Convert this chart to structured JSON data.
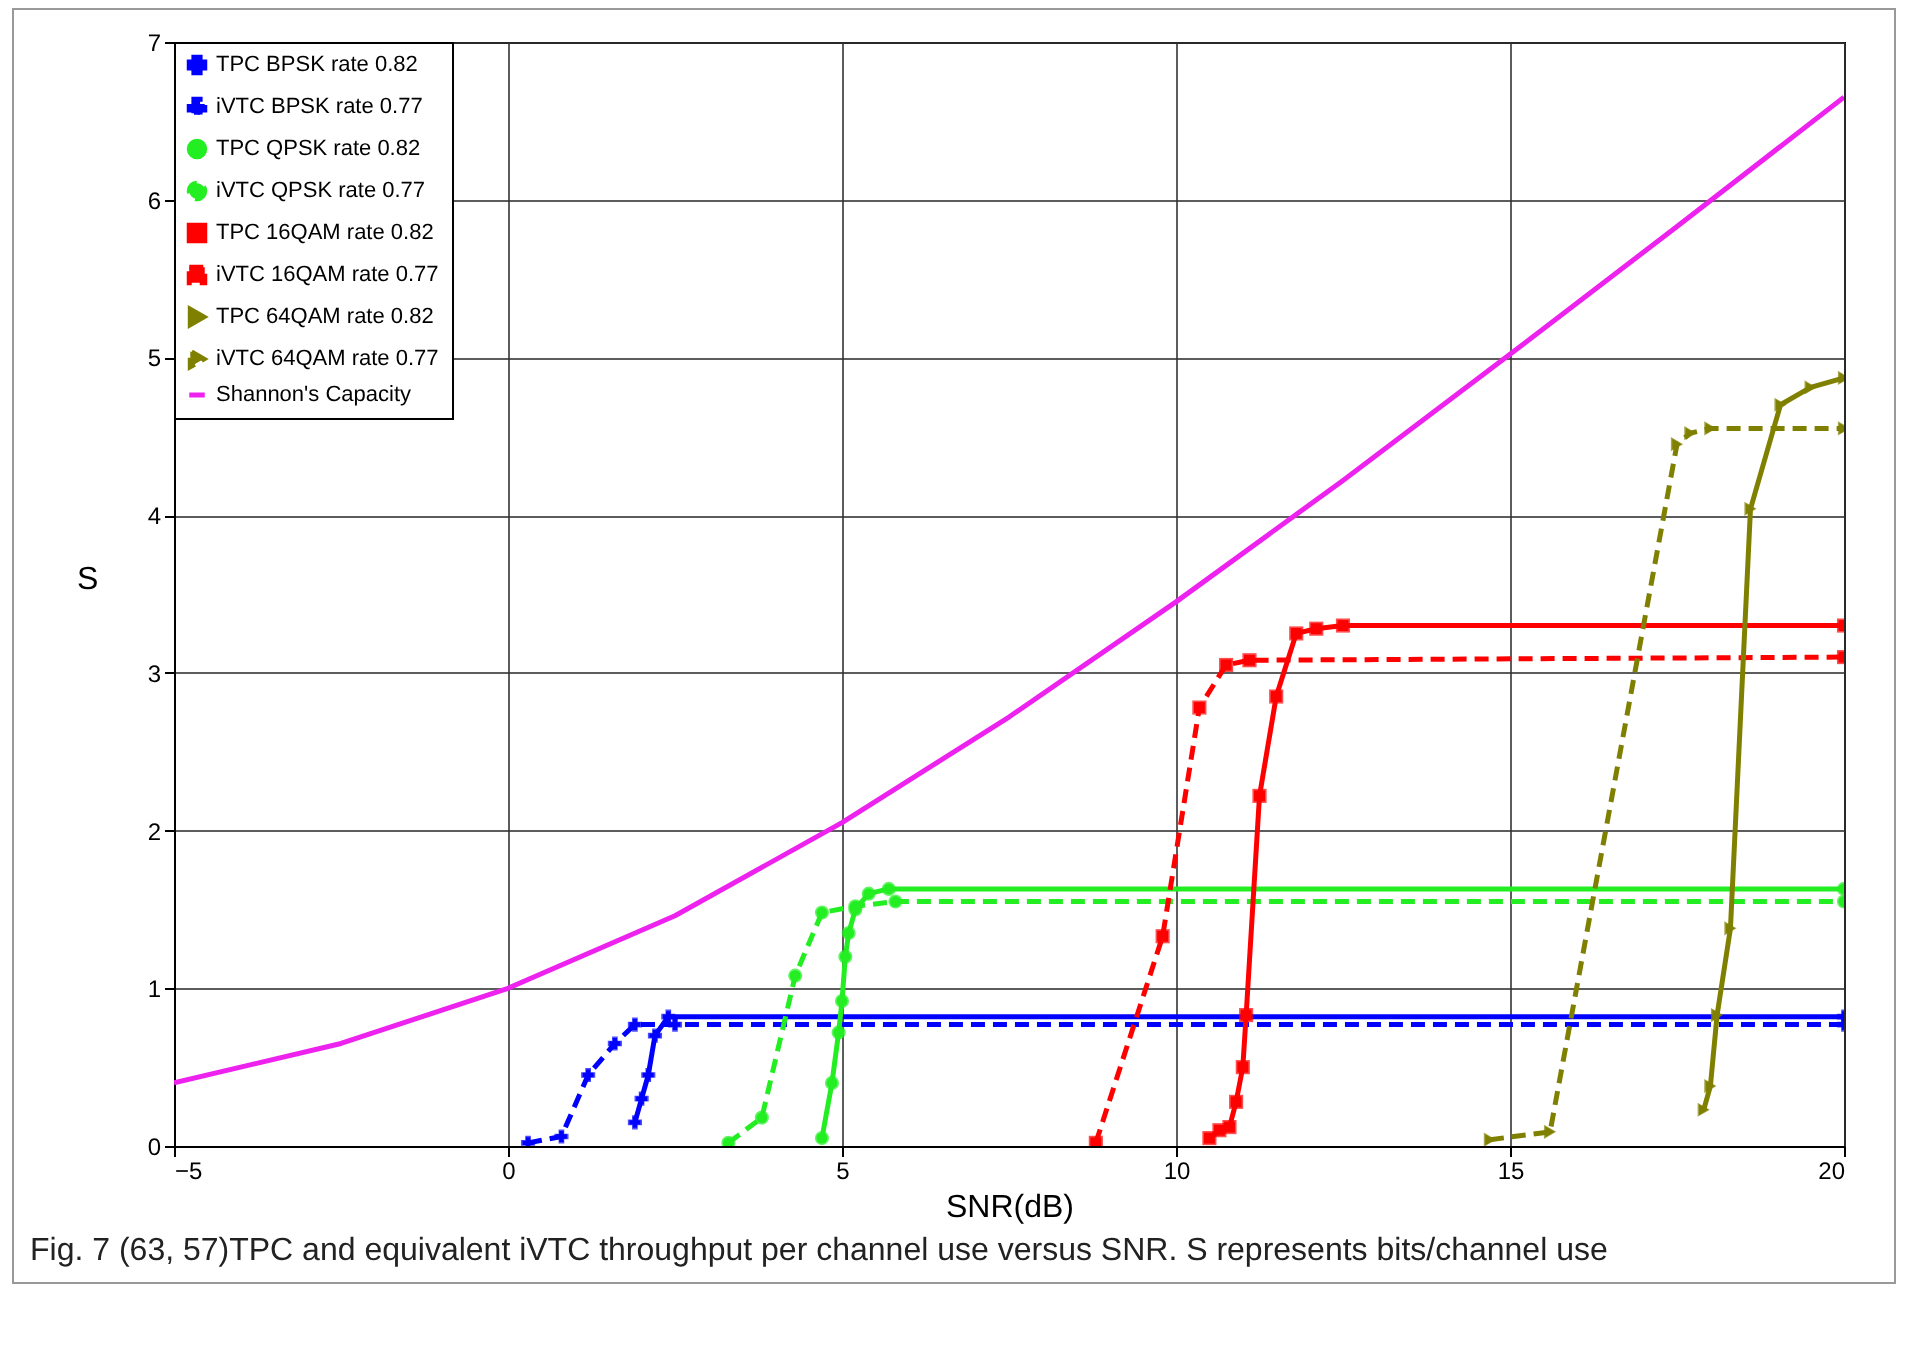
{
  "chart_data": {
    "type": "line",
    "xlabel": "SNR(dB)",
    "ylabel": "S",
    "xlim": [
      -5,
      20
    ],
    "ylim": [
      0,
      7
    ],
    "xticks": [
      -5,
      0,
      5,
      10,
      15,
      20
    ],
    "yticks": [
      0,
      1,
      2,
      3,
      4,
      5,
      6,
      7
    ],
    "grid": true,
    "legend": "top left",
    "annotations": [
      "Fig. 7  (63, 57)TPC and equivalent iVTC throughput per channel use versus SNR. S represents bits/channel use"
    ],
    "series": [
      {
        "name": "TPC BPSK rate 0.82",
        "color": "#0000ff",
        "marker": "cross",
        "line_style": "solid",
        "x": [
          1.9,
          2.0,
          2.1,
          2.2,
          2.4,
          20
        ],
        "values": [
          0.15,
          0.3,
          0.45,
          0.7,
          0.82,
          0.82
        ]
      },
      {
        "name": "iVTC BPSK rate 0.77",
        "color": "#0000ff",
        "marker": "cross",
        "line_style": "dashed",
        "x": [
          0.3,
          0.8,
          1.2,
          1.6,
          1.9,
          2.5,
          20
        ],
        "values": [
          0.02,
          0.06,
          0.45,
          0.65,
          0.77,
          0.77,
          0.77
        ]
      },
      {
        "name": "TPC QPSK rate 0.82",
        "color": "#22ee22",
        "marker": "circle",
        "line_style": "solid",
        "x": [
          4.7,
          4.85,
          4.95,
          5.0,
          5.05,
          5.1,
          5.2,
          5.4,
          5.7,
          20
        ],
        "values": [
          0.05,
          0.4,
          0.72,
          0.92,
          1.2,
          1.35,
          1.5,
          1.6,
          1.63,
          1.63
        ]
      },
      {
        "name": "iVTC QPSK rate 0.77",
        "color": "#22ee22",
        "marker": "circle",
        "line_style": "dashed",
        "x": [
          3.3,
          3.8,
          4.3,
          4.7,
          5.2,
          5.8,
          20
        ],
        "values": [
          0.02,
          0.18,
          1.08,
          1.48,
          1.52,
          1.55,
          1.55
        ]
      },
      {
        "name": "TPC 16QAM rate 0.82",
        "color": "#ff0000",
        "marker": "square",
        "line_style": "solid",
        "x": [
          10.5,
          10.65,
          10.8,
          10.9,
          11.0,
          11.05,
          11.25,
          11.5,
          11.8,
          12.1,
          12.5,
          20
        ],
        "values": [
          0.05,
          0.1,
          0.12,
          0.28,
          0.5,
          0.83,
          2.22,
          2.85,
          3.25,
          3.28,
          3.3,
          3.3
        ]
      },
      {
        "name": "iVTC 16QAM rate 0.77",
        "color": "#ff0000",
        "marker": "square",
        "line_style": "dashed",
        "x": [
          8.8,
          9.8,
          10.35,
          10.75,
          11.1,
          20
        ],
        "values": [
          0.02,
          1.33,
          2.78,
          3.05,
          3.08,
          3.1
        ]
      },
      {
        "name": "TPC 64QAM rate 0.82",
        "color": "#808000",
        "marker": "triangle",
        "line_style": "solid",
        "x": [
          17.9,
          18.0,
          18.1,
          18.3,
          18.6,
          19.05,
          19.5,
          20
        ],
        "values": [
          0.23,
          0.38,
          0.83,
          1.38,
          4.04,
          4.7,
          4.81,
          4.87
        ]
      },
      {
        "name": "iVTC 64QAM rate 0.77",
        "color": "#808000",
        "marker": "triangle",
        "line_style": "dashed",
        "x": [
          14.7,
          15.6,
          17.5,
          17.7,
          18.0,
          20
        ],
        "values": [
          0.04,
          0.09,
          4.45,
          4.52,
          4.55,
          4.55
        ]
      },
      {
        "name": "Shannon's Capacity",
        "color": "#ee22ee",
        "marker": "none",
        "line_style": "solid",
        "x": [
          -5,
          -2.5,
          0,
          2.5,
          5,
          7.5,
          10,
          12.5,
          15,
          17.5,
          20
        ],
        "values": [
          0.4,
          0.65,
          1.0,
          1.46,
          2.05,
          2.72,
          3.45,
          4.22,
          5.02,
          5.83,
          6.65
        ]
      }
    ]
  }
}
